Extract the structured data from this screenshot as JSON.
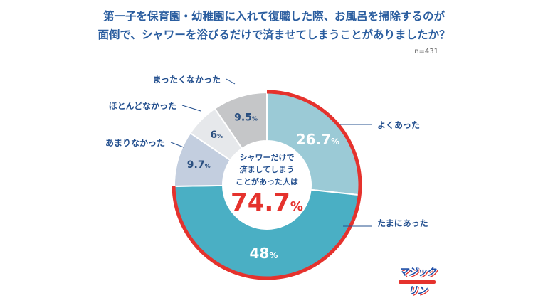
{
  "title_line1": "第一子を保育園・幼稚園に入れて復職した際、お風呂を掃除するのが",
  "title_line2": "面倒で、シャワーを浴びるだけで済ませてしまうことがありましたか？",
  "sample_size": "n=431",
  "center": {
    "line1": "シャワーだけで",
    "line2": "済ましてしまう",
    "line3": "ことがあった人は",
    "value": "74.7",
    "unit": "%"
  },
  "logo_text": "マジックリン",
  "colors": {
    "accent_red": "#e5322d",
    "title_blue": "#2a5d9f",
    "label_blue": "#24508f"
  },
  "chart_data": {
    "type": "pie",
    "variant": "donut",
    "unit": "%",
    "slices": [
      {
        "label": "よくあった",
        "value": 26.7,
        "color": "#9bcad6"
      },
      {
        "label": "たまにあった",
        "value": 48,
        "color": "#4aafc4"
      },
      {
        "label": "あまりなかった",
        "value": 9.7,
        "color": "#c3cedf"
      },
      {
        "label": "ほとんどなかった",
        "value": 6,
        "color": "#e6e8eb"
      },
      {
        "label": "まったくなかった",
        "value": 9.5,
        "color": "#c5c6c8"
      }
    ],
    "highlight_total": 74.7
  }
}
